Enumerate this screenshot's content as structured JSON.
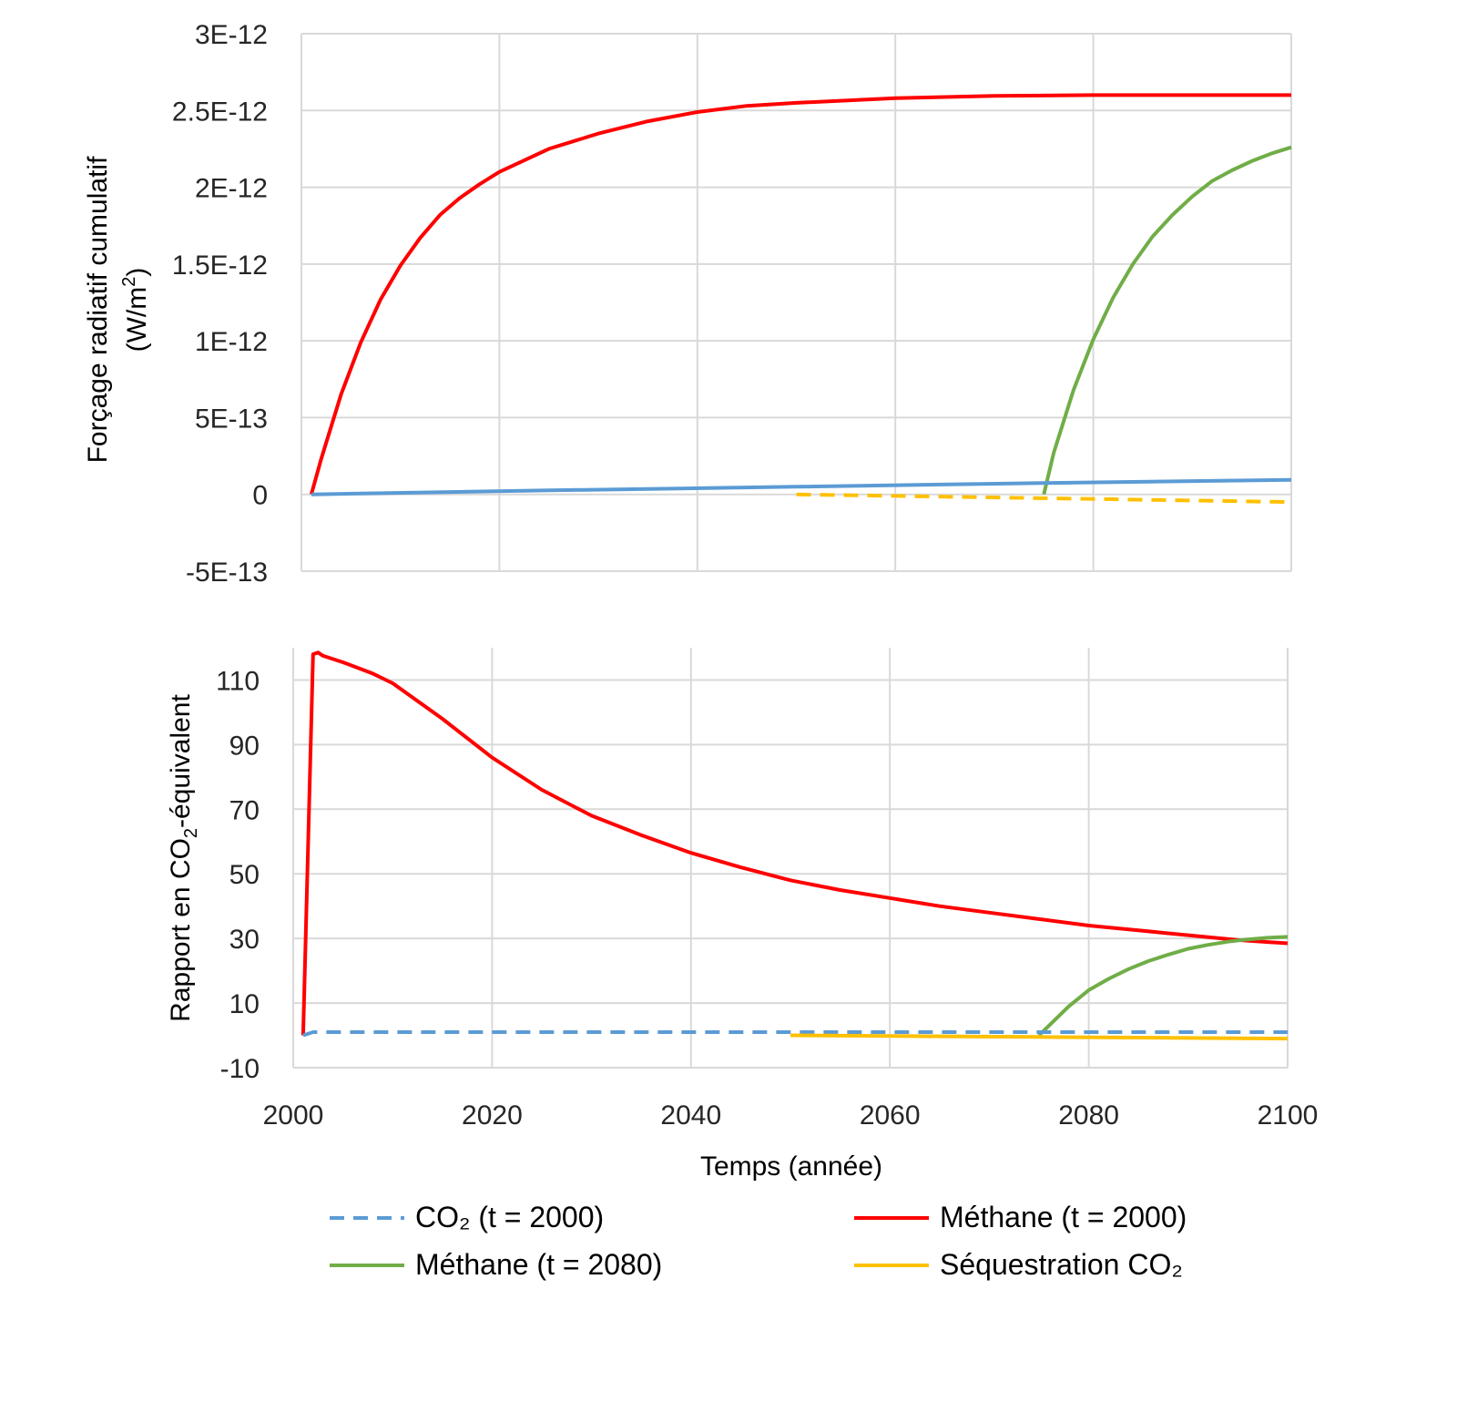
{
  "chart_data": [
    {
      "type": "line",
      "ylabel_line1": "Forçage radiatif cumulatif",
      "ylabel_line2_main": "(W/m",
      "ylabel_line2_sup": "2",
      "ylabel_line2_end": ")",
      "xlim": [
        2000,
        2100
      ],
      "ylim": [
        -5e-13,
        3e-12
      ],
      "xticks": [
        2000,
        2020,
        2040,
        2060,
        2080,
        2100
      ],
      "yticks": [
        -5e-13,
        0,
        5e-13,
        1e-12,
        1.5e-12,
        2e-12,
        2.5e-12,
        3e-12
      ],
      "ytick_labels": [
        "-5E-13",
        "0",
        "5E-13",
        "1E-12",
        "1.5E-12",
        "2E-12",
        "2.5E-12",
        "3E-12"
      ],
      "grid": true,
      "series": [
        {
          "key": "ch4_2000",
          "color": "#ff0000",
          "dash": "solid",
          "x": [
            2001,
            2002,
            2004,
            2006,
            2008,
            2010,
            2012,
            2014,
            2016,
            2018,
            2020,
            2025,
            2030,
            2035,
            2040,
            2045,
            2050,
            2060,
            2070,
            2080,
            2090,
            2100
          ],
          "y": [
            0,
            2.3e-13,
            6.5e-13,
            9.9e-13,
            1.27e-12,
            1.49e-12,
            1.67e-12,
            1.82e-12,
            1.93e-12,
            2.02e-12,
            2.1e-12,
            2.25e-12,
            2.35e-12,
            2.43e-12,
            2.49e-12,
            2.53e-12,
            2.55e-12,
            2.58e-12,
            2.595e-12,
            2.6e-12,
            2.6e-12,
            2.6e-12
          ]
        },
        {
          "key": "ch4_2080",
          "color": "#70ad47",
          "dash": "solid",
          "x": [
            2075,
            2076,
            2078,
            2080,
            2082,
            2084,
            2086,
            2088,
            2090,
            2092,
            2094,
            2096,
            2098,
            2100
          ],
          "y": [
            0,
            2.7e-13,
            6.8e-13,
            1.01e-12,
            1.28e-12,
            1.5e-12,
            1.68e-12,
            1.82e-12,
            1.94e-12,
            2.04e-12,
            2.11e-12,
            2.17e-12,
            2.22e-12,
            2.26e-12
          ]
        },
        {
          "key": "co2_2000",
          "color": "#5b9bd5",
          "dash": "solid",
          "x": [
            2001,
            2025,
            2050,
            2075,
            2100
          ],
          "y": [
            0,
            2.6e-14,
            5e-14,
            7.4e-14,
            9.5e-14
          ]
        },
        {
          "key": "seq",
          "color": "#ffc000",
          "dash": "dashed",
          "x": [
            2050,
            2075,
            2100
          ],
          "y": [
            0,
            -2.5e-14,
            -5e-14
          ]
        }
      ]
    },
    {
      "type": "line",
      "ylabel_main": "Rapport en CO",
      "ylabel_sub": "2",
      "ylabel_end": "-équivalent",
      "xlabel": "Temps (année)",
      "xlim": [
        2000,
        2100
      ],
      "ylim": [
        -10,
        120
      ],
      "xticks": [
        2000,
        2020,
        2040,
        2060,
        2080,
        2100
      ],
      "yticks": [
        -10,
        10,
        30,
        50,
        70,
        90,
        110
      ],
      "ytick_labels": [
        "-10",
        "10",
        "30",
        "50",
        "70",
        "90",
        "110"
      ],
      "grid": true,
      "series": [
        {
          "key": "ch4_2000",
          "color": "#ff0000",
          "dash": "solid",
          "x": [
            2001,
            2002,
            2002.5,
            2003,
            2005,
            2008,
            2010,
            2015,
            2020,
            2025,
            2030,
            2035,
            2040,
            2045,
            2050,
            2055,
            2060,
            2065,
            2070,
            2075,
            2080,
            2085,
            2090,
            2095,
            2100
          ],
          "y": [
            0,
            118,
            118.5,
            117.5,
            115.5,
            112,
            109,
            98,
            86,
            76,
            68,
            62,
            56.5,
            52,
            48,
            45,
            42.5,
            40,
            38,
            36,
            34,
            32.5,
            31,
            29.5,
            28.5
          ]
        },
        {
          "key": "ch4_2080",
          "color": "#70ad47",
          "dash": "solid",
          "x": [
            2075,
            2076,
            2078,
            2080,
            2082,
            2084,
            2086,
            2088,
            2090,
            2092,
            2094,
            2096,
            2098,
            2100
          ],
          "y": [
            0,
            3,
            9,
            14,
            17.5,
            20.5,
            23,
            25,
            26.8,
            28,
            29,
            29.7,
            30.2,
            30.5
          ]
        },
        {
          "key": "co2_2000",
          "color": "#5b9bd5",
          "dash": "dashed",
          "x": [
            2001,
            2002,
            2100
          ],
          "y": [
            0,
            1,
            1
          ]
        },
        {
          "key": "seq",
          "color": "#ffc000",
          "dash": "solid",
          "x": [
            2050,
            2075,
            2100
          ],
          "y": [
            0,
            -0.5,
            -1
          ]
        }
      ]
    }
  ],
  "legend": [
    {
      "key": "co2_2000",
      "label": "CO₂ (t = 2000)",
      "color": "#5b9bd5",
      "dash": "dashed"
    },
    {
      "key": "ch4_2000",
      "label": "Méthane (t = 2000)",
      "color": "#ff0000",
      "dash": "solid"
    },
    {
      "key": "ch4_2080",
      "label": "Méthane (t = 2080)",
      "color": "#70ad47",
      "dash": "solid"
    },
    {
      "key": "seq",
      "label": "Séquestration  CO₂",
      "color": "#ffc000",
      "dash": "solid"
    }
  ]
}
